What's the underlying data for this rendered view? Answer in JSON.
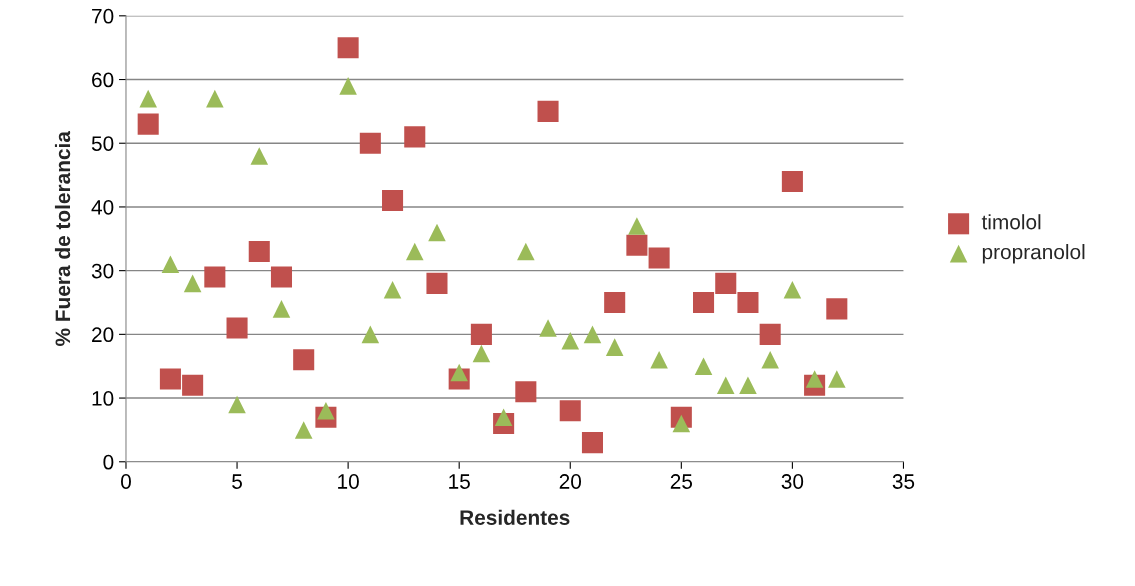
{
  "chart_data": {
    "type": "scatter",
    "xlabel": "Residentes",
    "ylabel": "% Fuera de tolerancia",
    "x": [
      1,
      2,
      3,
      4,
      5,
      6,
      7,
      8,
      9,
      10,
      11,
      12,
      13,
      14,
      15,
      16,
      17,
      18,
      19,
      20,
      21,
      22,
      23,
      24,
      25,
      26,
      27,
      28,
      29,
      30,
      31,
      32
    ],
    "series": [
      {
        "name": "timolol",
        "color": "#c0504d",
        "marker": "square",
        "values": [
          53,
          13,
          12,
          29,
          21,
          33,
          29,
          16,
          7,
          65,
          50,
          41,
          51,
          28,
          13,
          20,
          6,
          11,
          55,
          8,
          3,
          25,
          34,
          32,
          7,
          25,
          28,
          25,
          20,
          44,
          12,
          24
        ]
      },
      {
        "name": "propranolol",
        "color": "#9bbb59",
        "marker": "triangle",
        "values": [
          57,
          31,
          28,
          57,
          9,
          48,
          24,
          5,
          8,
          59,
          20,
          27,
          33,
          36,
          14,
          17,
          7,
          33,
          21,
          19,
          20,
          18,
          37,
          16,
          6,
          15,
          12,
          12,
          16,
          27,
          13,
          13
        ]
      }
    ],
    "xlim": [
      0,
      35
    ],
    "xticks": [
      0,
      5,
      10,
      15,
      20,
      25,
      30,
      35
    ],
    "ylim": [
      0,
      70
    ],
    "yticks": [
      0,
      10,
      20,
      30,
      40,
      50,
      60,
      70
    ],
    "grid": "y",
    "legend": "right"
  }
}
